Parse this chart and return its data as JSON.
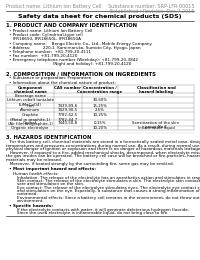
{
  "title": "Safety data sheet for chemical products (SDS)",
  "header_left": "Product name: Lithium Ion Battery Cell",
  "header_right_line1": "Substance number: SRP-LFR-00015",
  "header_right_line2": "Established / Revision: Dec.7.2015",
  "s1_title": "1. PRODUCT AND COMPANY IDENTIFICATION",
  "s1_lines": [
    "• Product name: Lithium Ion Battery Cell",
    "• Product code: Cylindrical-type cell",
    "   IFR18650, IFR18650L, IFR18650A",
    "• Company name:    Bengo Electric Co., Ltd., Mobile Energy Company",
    "• Address:          220-1  Kamimaruko, Sumoto City, Hyogo, Japan",
    "• Telephone number:  +81-799-20-4111",
    "• Fax number:  +81-799-20-4120",
    "• Emergency telephone number (Weekday): +81-799-20-3842",
    "                                   (Night and holiday): +81-799-20-4120"
  ],
  "s2_title": "2. COMPOSITION / INFORMATION ON INGREDIENTS",
  "s2_intro": "• Substance or preparation: Preparation",
  "s2_sub": "• Information about the chemical nature of product:",
  "s3_title": "3. HAZARDS IDENTIFICATION",
  "para_lines": [
    "   For this battery cell, chemical materials are stored in a hermetically sealed metal case, designed to withstand",
    "temperatures and pressures-concentrations during normal use. As a result, during normal use, there is no",
    "physical danger of ignition or explosion and there is no danger of hazardous materials leakage.",
    "   However, if exposed to a fire, added mechanical shocks, decomposed, when electrolyte misuse,",
    "the gas insides can be operated. The battery cell case will be breached or fire-particles, hazardous",
    "materials may be released.",
    "   Moreover, if heated strongly by the surrounding fire, some gas may be emitted."
  ],
  "bullet1": "• Most important hazard and effects:",
  "human_health": "Human health effects:",
  "human_lines": [
    "Inhalation: The release of the electrolyte has an anesthetics action and stimulates in respiratory tract.",
    "Skin contact: The release of the electrolyte stimulates a skin. The electrolyte skin contact causes a",
    "sore and stimulation on the skin.",
    "Eye contact: The release of the electrolyte stimulates eyes. The electrolyte eye contact causes a sore",
    "and stimulation on the eye. Especially, a substance that causes a strong inflammation of the eye is",
    "contained.",
    "Environmental effects: Since a battery cell remains in the environment, do not throw out it into the",
    "environment."
  ],
  "bullet2": "• Specific hazards:",
  "specific_lines": [
    "If the electrolyte contacts with water, it will generate deleterious hydrogen fluoride.",
    "Since the used electrolyte is inflammable liquid, do not bring close to fire."
  ],
  "bg_color": "#ffffff",
  "text_color": "#000000",
  "gray_color": "#888888",
  "light_gray": "#aaaaaa"
}
